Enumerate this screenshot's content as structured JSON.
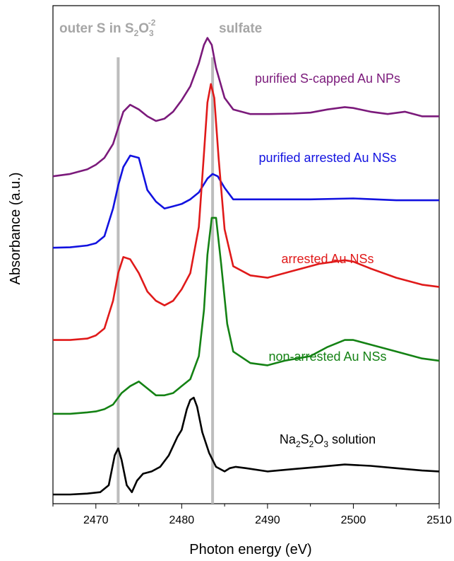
{
  "chart_data": {
    "type": "line",
    "xlabel": "Photon energy (eV)",
    "ylabel": "Absorbance (a.u.)",
    "xlim": [
      2465,
      2510
    ],
    "xticks": [
      2470,
      2480,
      2490,
      2500,
      2510
    ],
    "y_tick_labels": false,
    "grid": false,
    "reference_lines": [
      {
        "x": 2472.6,
        "label": "outer S in S2O3-2",
        "label_main": "outer S in S",
        "sub1": "2",
        "mid": "O",
        "sub2": "3",
        "sup": "-2"
      },
      {
        "x": 2483.6,
        "label": "sulfate"
      }
    ],
    "series": [
      {
        "name": "purified S-capped Au NPs",
        "color": "#7b1a7b",
        "x": [
          2465,
          2467,
          2469,
          2470,
          2471,
          2472,
          2472.6,
          2473.2,
          2474,
          2475,
          2476,
          2477,
          2478,
          2479,
          2480,
          2481,
          2482,
          2482.6,
          2483,
          2483.5,
          2484,
          2485,
          2486,
          2488,
          2490,
          2493,
          2495,
          2497,
          2499,
          2500,
          2502,
          2504,
          2506,
          2508,
          2510
        ],
        "values": [
          0.69,
          0.695,
          0.705,
          0.715,
          0.73,
          0.76,
          0.795,
          0.83,
          0.845,
          0.835,
          0.82,
          0.81,
          0.815,
          0.83,
          0.855,
          0.885,
          0.935,
          0.975,
          0.99,
          0.975,
          0.925,
          0.86,
          0.835,
          0.825,
          0.825,
          0.826,
          0.828,
          0.835,
          0.84,
          0.838,
          0.83,
          0.825,
          0.83,
          0.82,
          0.82
        ]
      },
      {
        "name": "purified arrested Au NSs",
        "color": "#1212e0",
        "x": [
          2465,
          2467,
          2469,
          2470,
          2471,
          2472,
          2472.6,
          2473.2,
          2474,
          2475,
          2476,
          2477,
          2478,
          2479,
          2480,
          2481,
          2482,
          2483,
          2483.6,
          2484.2,
          2485,
          2486,
          2488,
          2490,
          2495,
          2500,
          2505,
          2510
        ],
        "values": [
          0.535,
          0.536,
          0.54,
          0.545,
          0.56,
          0.62,
          0.67,
          0.71,
          0.735,
          0.73,
          0.66,
          0.635,
          0.62,
          0.625,
          0.63,
          0.64,
          0.655,
          0.685,
          0.695,
          0.69,
          0.665,
          0.64,
          0.64,
          0.64,
          0.64,
          0.642,
          0.638,
          0.638
        ]
      },
      {
        "name": "arrested Au NSs",
        "color": "#e01a1a",
        "x": [
          2465,
          2467,
          2469,
          2470,
          2471,
          2472,
          2472.6,
          2473.2,
          2474,
          2475,
          2476,
          2477,
          2478,
          2479,
          2480,
          2481,
          2482,
          2482.6,
          2483,
          2483.4,
          2483.8,
          2484.3,
          2485,
          2486,
          2488,
          2490,
          2493,
          2496,
          2499,
          2500,
          2502,
          2505,
          2508,
          2510
        ],
        "values": [
          0.335,
          0.335,
          0.338,
          0.345,
          0.36,
          0.42,
          0.48,
          0.515,
          0.51,
          0.48,
          0.44,
          0.42,
          0.41,
          0.42,
          0.445,
          0.48,
          0.58,
          0.74,
          0.85,
          0.89,
          0.86,
          0.73,
          0.575,
          0.495,
          0.475,
          0.47,
          0.485,
          0.5,
          0.508,
          0.505,
          0.49,
          0.47,
          0.455,
          0.45
        ]
      },
      {
        "name": "non-arrested Au NSs",
        "color": "#148214",
        "x": [
          2465,
          2467,
          2469,
          2470,
          2471,
          2472,
          2473,
          2474,
          2475,
          2476,
          2477,
          2478,
          2479,
          2480,
          2481,
          2482,
          2482.6,
          2483,
          2483.5,
          2484,
          2484.6,
          2485.3,
          2486,
          2488,
          2490,
          2492,
          2495,
          2497,
          2499,
          2500,
          2502,
          2505,
          2508,
          2510
        ],
        "values": [
          0.175,
          0.175,
          0.178,
          0.18,
          0.185,
          0.195,
          0.22,
          0.235,
          0.245,
          0.23,
          0.215,
          0.215,
          0.22,
          0.235,
          0.25,
          0.3,
          0.4,
          0.52,
          0.6,
          0.6,
          0.5,
          0.37,
          0.31,
          0.285,
          0.28,
          0.29,
          0.3,
          0.32,
          0.335,
          0.335,
          0.325,
          0.31,
          0.295,
          0.29
        ]
      },
      {
        "name": "Na2S2O3 solution",
        "color": "#000000",
        "x": [
          2465,
          2467,
          2469,
          2470.5,
          2471.5,
          2472.2,
          2472.6,
          2473,
          2473.6,
          2474.2,
          2474.8,
          2475.5,
          2476.5,
          2477.5,
          2478.5,
          2479.5,
          2480,
          2480.6,
          2481,
          2481.4,
          2481.8,
          2482.4,
          2483.2,
          2484,
          2485,
          2485.6,
          2486.3,
          2487.5,
          2490,
          2493,
          2496,
          2499,
          2502,
          2505,
          2508,
          2510
        ],
        "values": [
          0.0,
          0.0,
          0.002,
          0.005,
          0.02,
          0.085,
          0.1,
          0.075,
          0.02,
          0.005,
          0.03,
          0.045,
          0.05,
          0.06,
          0.085,
          0.125,
          0.14,
          0.185,
          0.205,
          0.21,
          0.19,
          0.135,
          0.09,
          0.06,
          0.05,
          0.057,
          0.06,
          0.057,
          0.05,
          0.055,
          0.06,
          0.065,
          0.062,
          0.057,
          0.052,
          0.05
        ]
      }
    ]
  }
}
